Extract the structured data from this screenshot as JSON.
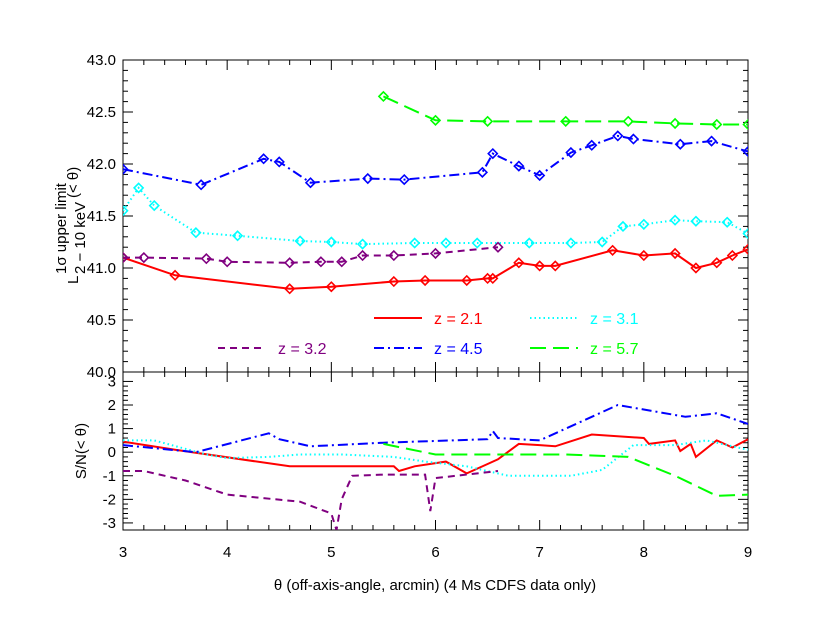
{
  "chart_data": [
    {
      "type": "line",
      "ylabel_main": "L",
      "ylabel_super": "1σ upper limit",
      "ylabel_sub": "2 − 10 keV",
      "ylabel_suffix": "(< θ)",
      "xlim": [
        3,
        9
      ],
      "ylim": [
        40.0,
        43.0
      ],
      "yticks": [
        "40.0",
        "40.5",
        "41.0",
        "41.5",
        "42.0",
        "42.5",
        "43.0"
      ],
      "series": [
        {
          "name": "z = 2.1",
          "color": "#ff0000",
          "dash": "solid",
          "marker": "diamond",
          "x": [
            3.0,
            3.5,
            4.6,
            5.0,
            5.6,
            5.9,
            6.3,
            6.5,
            6.55,
            6.8,
            7.0,
            7.15,
            7.7,
            8.0,
            8.3,
            8.5,
            8.7,
            8.85,
            9.0
          ],
          "y": [
            41.1,
            40.93,
            40.8,
            40.82,
            40.87,
            40.88,
            40.88,
            40.9,
            40.9,
            41.05,
            41.02,
            41.02,
            41.17,
            41.12,
            41.14,
            41.0,
            41.05,
            41.12,
            41.18
          ]
        },
        {
          "name": "z = 3.1",
          "color": "#00ffff",
          "dash": "dotted",
          "marker": "diamond",
          "x": [
            3.0,
            3.15,
            3.3,
            3.7,
            4.1,
            4.7,
            5.0,
            5.3,
            5.8,
            6.1,
            6.4,
            6.9,
            7.3,
            7.6,
            7.8,
            8.0,
            8.3,
            8.5,
            8.8,
            9.0
          ],
          "y": [
            41.55,
            41.77,
            41.6,
            41.34,
            41.31,
            41.26,
            41.25,
            41.23,
            41.24,
            41.24,
            41.24,
            41.24,
            41.24,
            41.25,
            41.4,
            41.42,
            41.46,
            41.45,
            41.44,
            41.33
          ]
        },
        {
          "name": "z = 3.2",
          "color": "#800080",
          "dash": "dashed",
          "marker": "diamond",
          "x": [
            3.0,
            3.2,
            3.8,
            4.0,
            4.6,
            4.9,
            5.1,
            5.3,
            5.6,
            6.0,
            6.6
          ],
          "y": [
            41.1,
            41.1,
            41.09,
            41.06,
            41.05,
            41.06,
            41.06,
            41.12,
            41.12,
            41.14,
            41.2
          ]
        },
        {
          "name": "z = 4.5",
          "color": "#0000ff",
          "dash": "dashdot",
          "marker": "diamond",
          "x": [
            3.0,
            3.75,
            4.35,
            4.5,
            4.8,
            5.35,
            5.7,
            6.45,
            6.55,
            6.8,
            7.0,
            7.3,
            7.5,
            7.75,
            7.9,
            8.35,
            8.65,
            9.0
          ],
          "y": [
            41.95,
            41.8,
            42.05,
            42.02,
            41.82,
            41.86,
            41.85,
            41.92,
            42.1,
            41.98,
            41.89,
            42.11,
            42.18,
            42.27,
            42.24,
            42.19,
            42.22,
            42.12
          ]
        },
        {
          "name": "z = 5.7",
          "color": "#00ff00",
          "dash": "longdash",
          "marker": "diamond",
          "x": [
            5.5,
            6.0,
            6.5,
            7.25,
            7.85,
            8.3,
            8.7,
            9.0
          ],
          "y": [
            42.65,
            42.42,
            42.41,
            42.41,
            42.41,
            42.39,
            42.38,
            42.38
          ]
        }
      ],
      "legend": [
        {
          "name": "z = 2.1",
          "color": "#ff0000",
          "dash": "solid"
        },
        {
          "name": "z = 3.1",
          "color": "#00ffff",
          "dash": "dotted"
        },
        {
          "name": "z = 3.2",
          "color": "#800080",
          "dash": "dashed"
        },
        {
          "name": "z = 4.5",
          "color": "#0000ff",
          "dash": "dashdot"
        },
        {
          "name": "z = 5.7",
          "color": "#00ff00",
          "dash": "longdash"
        }
      ]
    },
    {
      "type": "line",
      "ylabel": "S/N(< θ)",
      "xlabel": "θ (off-axis-angle, arcmin) (4 Ms CDFS data only)",
      "xlim": [
        3,
        9
      ],
      "ylim": [
        -3.3,
        3.4
      ],
      "xticks": [
        "3",
        "4",
        "5",
        "6",
        "7",
        "8",
        "9"
      ],
      "yticks": [
        "-3",
        "-2",
        "-1",
        "0",
        "1",
        "2",
        "3"
      ],
      "series": [
        {
          "name": "z = 2.1",
          "color": "#ff0000",
          "dash": "solid",
          "x": [
            3.0,
            3.5,
            4.6,
            5.1,
            5.6,
            5.65,
            5.8,
            6.1,
            6.3,
            6.5,
            6.6,
            6.8,
            7.0,
            7.15,
            7.5,
            8.0,
            8.05,
            8.3,
            8.35,
            8.45,
            8.5,
            8.7,
            8.85,
            9.0
          ],
          "y": [
            0.45,
            0.1,
            -0.6,
            -0.6,
            -0.6,
            -0.8,
            -0.6,
            -0.4,
            -0.9,
            -0.5,
            -0.3,
            0.35,
            0.3,
            0.25,
            0.75,
            0.6,
            0.35,
            0.5,
            0.05,
            0.35,
            -0.2,
            0.5,
            0.2,
            0.55
          ]
        },
        {
          "name": "z = 3.1",
          "color": "#00ffff",
          "dash": "dotted",
          "x": [
            3.0,
            3.3,
            3.8,
            4.0,
            4.4,
            4.7,
            5.1,
            5.6,
            5.9,
            6.3,
            6.7,
            7.0,
            7.3,
            7.6,
            7.9,
            8.3,
            8.6,
            9.0
          ],
          "y": [
            0.5,
            0.5,
            -0.1,
            -0.25,
            -0.2,
            -0.1,
            -0.1,
            -0.2,
            -0.4,
            -0.6,
            -1.0,
            -1.0,
            -1.0,
            -0.75,
            0.3,
            0.3,
            0.5,
            0.1
          ]
        },
        {
          "name": "z = 3.2",
          "color": "#800080",
          "dash": "dashed",
          "x": [
            3.0,
            3.2,
            3.6,
            4.0,
            4.7,
            5.0,
            5.05,
            5.1,
            5.2,
            5.5,
            5.9,
            5.95,
            6.0,
            6.6
          ],
          "y": [
            -0.8,
            -0.8,
            -1.2,
            -1.8,
            -2.1,
            -2.6,
            -3.3,
            -2.0,
            -1.0,
            -0.95,
            -0.95,
            -2.5,
            -1.1,
            -0.8
          ]
        },
        {
          "name": "z = 4.5",
          "color": "#0000ff",
          "dash": "dashdot",
          "x": [
            3.0,
            3.7,
            4.4,
            4.5,
            4.8,
            5.5,
            6.5,
            6.55,
            6.6,
            7.0,
            7.5,
            7.75,
            8.4,
            8.7,
            9.0
          ],
          "y": [
            0.3,
            0.0,
            0.8,
            0.55,
            0.25,
            0.4,
            0.55,
            0.9,
            0.6,
            0.5,
            1.5,
            2.0,
            1.5,
            1.65,
            1.2
          ]
        },
        {
          "name": "z = 5.7",
          "color": "#00ff00",
          "dash": "longdash",
          "x": [
            5.5,
            6.0,
            6.5,
            7.25,
            7.85,
            8.3,
            8.7,
            9.0
          ],
          "y": [
            0.35,
            -0.1,
            -0.1,
            -0.1,
            -0.2,
            -1.0,
            -1.85,
            -1.8
          ]
        }
      ]
    }
  ]
}
